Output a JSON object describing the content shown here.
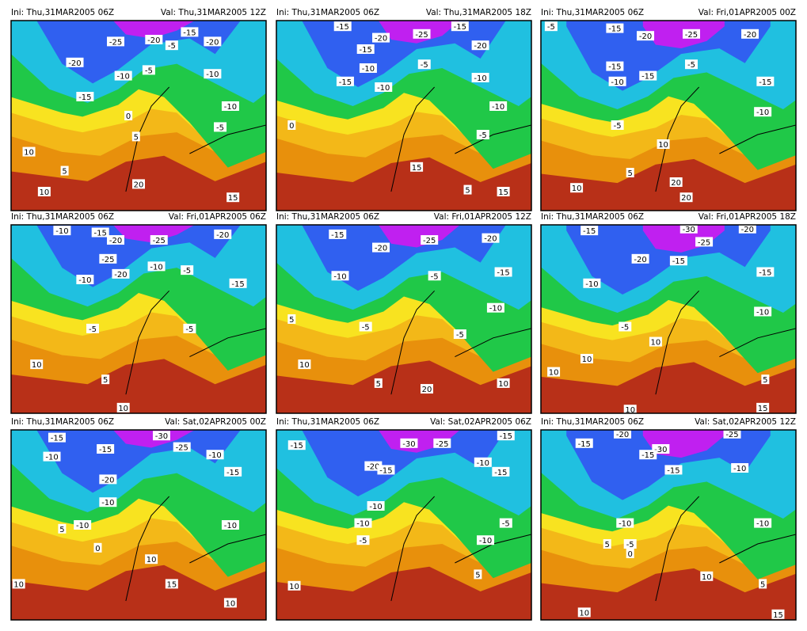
{
  "panels": [
    {
      "ini": "Ini: Thu,31MAR2005 06Z",
      "val": "Val: Thu,31MAR2005 12Z",
      "labels": [
        "-25",
        "-20",
        "-15",
        "-20",
        "-5",
        "-20",
        "-10",
        "-5",
        "-10",
        "-15",
        "-10",
        "0",
        "-5",
        "5",
        "10",
        "5",
        "10",
        "20",
        "15"
      ]
    },
    {
      "ini": "Ini: Thu,31MAR2005 06Z",
      "val": "Val: Thu,31MAR2005 18Z",
      "labels": [
        "-15",
        "-20",
        "-25",
        "-15",
        "-20",
        "-15",
        "-10",
        "-5",
        "-10",
        "-15",
        "-10",
        "-10",
        "0",
        "-5",
        "15",
        "5",
        "15"
      ]
    },
    {
      "ini": "Ini: Thu,31MAR2005 06Z",
      "val": "Val: Fri,01APR2005 00Z",
      "labels": [
        "-5",
        "-15",
        "-20",
        "-25",
        "-20",
        "-15",
        "-10",
        "-15",
        "-5",
        "-15",
        "-10",
        "-5",
        "10",
        "5",
        "10",
        "20",
        "20"
      ]
    },
    {
      "ini": "Ini: Thu,31MAR2005 06Z",
      "val": "Val: Fri,01APR2005 06Z",
      "labels": [
        "-10",
        "-15",
        "-20",
        "-25",
        "-20",
        "-25",
        "-20",
        "-10",
        "-5",
        "-10",
        "-15",
        "-5",
        "-5",
        "10",
        "5",
        "10"
      ]
    },
    {
      "ini": "Ini: Thu,31MAR2005 06Z",
      "val": "Val: Fri,01APR2005 12Z",
      "labels": [
        "-15",
        "-20",
        "-25",
        "-20",
        "-10",
        "-5",
        "-15",
        "-5",
        "-5",
        "-10",
        "5",
        "10",
        "5",
        "20",
        "10"
      ]
    },
    {
      "ini": "Ini: Thu,31MAR2005 06Z",
      "val": "Val: Fri,01APR2005 18Z",
      "labels": [
        "-15",
        "-30",
        "-20",
        "-25",
        "-20",
        "-15",
        "-10",
        "-15",
        "-5",
        "-10",
        "10",
        "10",
        "10",
        "5",
        "10",
        "15"
      ]
    },
    {
      "ini": "Ini: Thu,31MAR2005 06Z",
      "val": "Val: Sat,02APR2005 00Z",
      "labels": [
        "-15",
        "-30",
        "-25",
        "-10",
        "-15",
        "-10",
        "-20",
        "-15",
        "-10",
        "-10",
        "-10",
        "5",
        "0",
        "10",
        "10",
        "15",
        "10"
      ]
    },
    {
      "ini": "Ini: Thu,31MAR2005 06Z",
      "val": "Val: Sat,02APR2005 06Z",
      "labels": [
        "-30",
        "-25",
        "-15",
        "-15",
        "-20",
        "-15",
        "-10",
        "-15",
        "-10",
        "-10",
        "-5",
        "-5",
        "-10",
        "10",
        "5"
      ]
    },
    {
      "ini": "Ini: Thu,31MAR2005 06Z",
      "val": "Val: Sat,02APR2005 12Z",
      "labels": [
        "-20",
        "-30",
        "-25",
        "-15",
        "-15",
        "-15",
        "-10",
        "-10",
        "-5",
        "-10",
        "5",
        "0",
        "10",
        "5",
        "10",
        "15"
      ]
    }
  ]
}
